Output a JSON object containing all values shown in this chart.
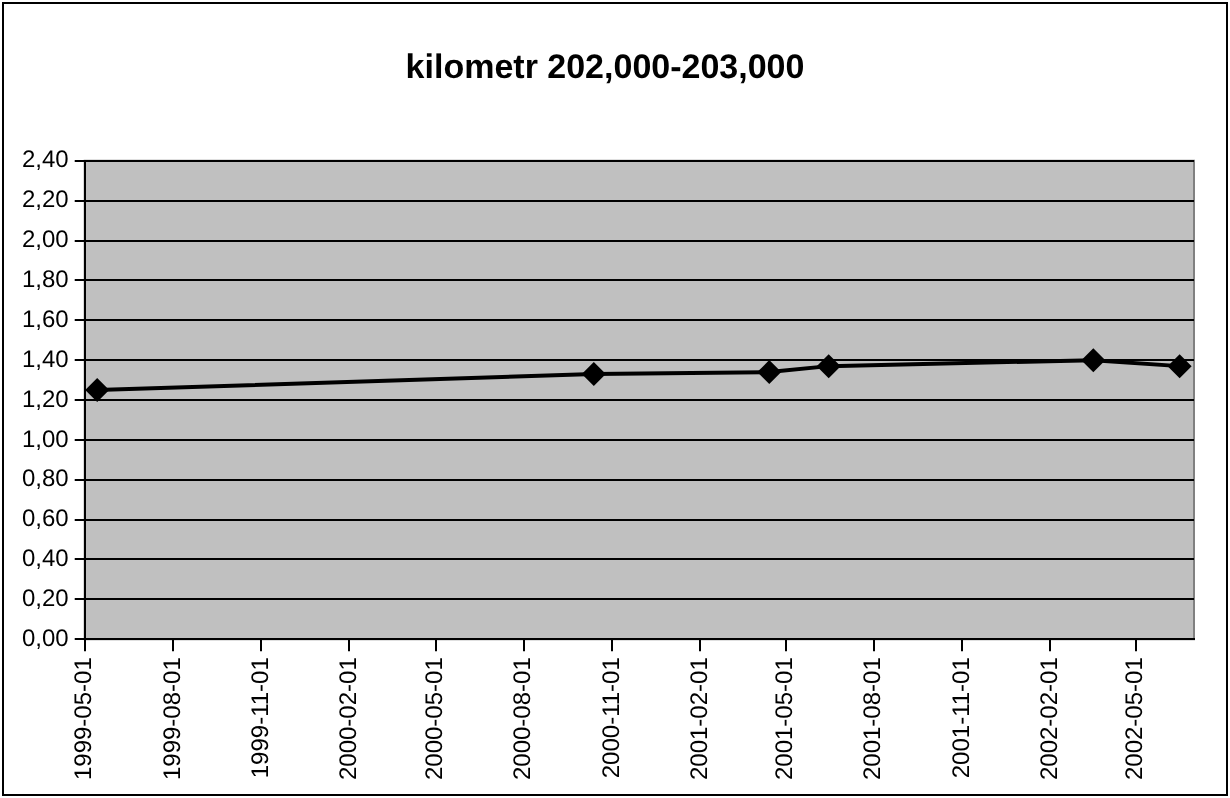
{
  "chart_data": {
    "type": "line",
    "title": "kilometr 202,000-203,000",
    "x": [
      "1999-05-14",
      "2000-10-13",
      "2001-04-14",
      "2001-06-15",
      "2002-03-18",
      "2002-06-16"
    ],
    "series": [
      {
        "color": "#000000",
        "values": [
          1.25,
          1.33,
          1.34,
          1.37,
          1.4,
          1.37
        ]
      }
    ],
    "xlim": [
      "1999-05-01",
      "2002-07-01"
    ],
    "xticks": [
      "1999-05-01",
      "1999-08-01",
      "1999-11-01",
      "2000-02-01",
      "2000-05-01",
      "2000-08-01",
      "2000-11-01",
      "2001-02-01",
      "2001-05-01",
      "2001-08-01",
      "2001-11-01",
      "2002-02-01",
      "2002-05-01"
    ],
    "ylim": [
      0,
      2.4
    ],
    "yticks": [
      {
        "value": 0,
        "label": "0,00"
      },
      {
        "value": 0.2,
        "label": "0,20"
      },
      {
        "value": 0.4,
        "label": "0,40"
      },
      {
        "value": 0.6,
        "label": "0,60"
      },
      {
        "value": 0.8,
        "label": "0,80"
      },
      {
        "value": 1,
        "label": "1,00"
      },
      {
        "value": 1.2,
        "label": "1,20"
      },
      {
        "value": 1.4,
        "label": "1,40"
      },
      {
        "value": 1.6,
        "label": "1,60"
      },
      {
        "value": 1.8,
        "label": "1,80"
      },
      {
        "value": 2,
        "label": "2,00"
      },
      {
        "value": 2.2,
        "label": "2,20"
      },
      {
        "value": 2.4,
        "label": "2,40"
      }
    ],
    "grid": "y",
    "legend": false,
    "marker": "diamond",
    "line_style": "solid"
  }
}
